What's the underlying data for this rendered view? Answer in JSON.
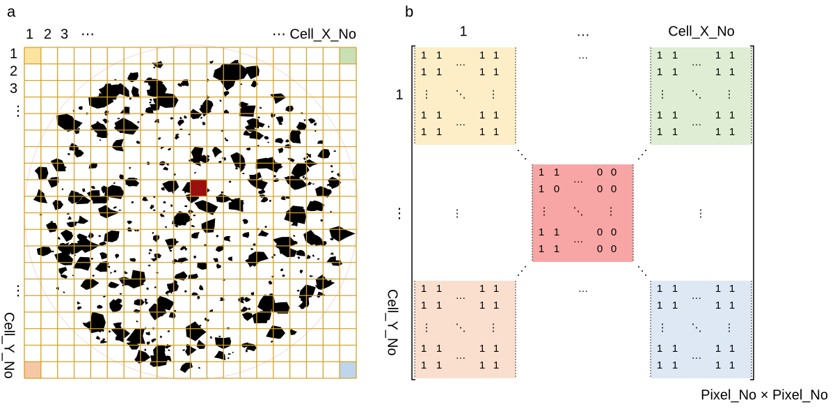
{
  "panel_a": {
    "label": "a",
    "top_labels": [
      "1",
      "2",
      "3",
      "⋯"
    ],
    "top_right_label": "⋯ Cell_X_No",
    "left_labels": [
      "1",
      "2",
      "3",
      "⋮"
    ],
    "left_lower_label": "⋮",
    "left_axis_label": "Cell_Y_No"
  },
  "panel_b": {
    "label": "b",
    "col_headers": [
      "1",
      "…",
      "Cell_X_No"
    ],
    "row_labels": [
      "1",
      "⋮",
      "Cell_Y_No"
    ],
    "footer": "Pixel_No × Pixel_No",
    "gap_texts": [
      "…",
      "⋮",
      "⋮",
      "…"
    ],
    "blocks": [
      {
        "rows": [
          [
            "1",
            "1",
            "…",
            "1",
            "1"
          ],
          [
            "1",
            "1",
            "1",
            "1"
          ],
          [
            "⋮",
            "⋱",
            "⋮"
          ],
          [
            "1",
            "1",
            "…",
            "1",
            "1"
          ],
          [
            "1",
            "1",
            "1",
            "1"
          ]
        ]
      },
      {
        "rows": [
          [
            "1",
            "1",
            "…",
            "1",
            "1"
          ],
          [
            "1",
            "1",
            "1",
            "1"
          ],
          [
            "⋮",
            "⋱",
            "⋮"
          ],
          [
            "1",
            "1",
            "…",
            "1",
            "1"
          ],
          [
            "1",
            "1",
            "1",
            "1"
          ]
        ]
      },
      {
        "rows": [
          [
            "1",
            "1",
            "…",
            "0",
            "0"
          ],
          [
            "1",
            "0",
            "0",
            "0"
          ],
          [
            "⋮",
            "⋱",
            "⋮"
          ],
          [
            "1",
            "1",
            "…",
            "0",
            "0"
          ],
          [
            "1",
            "1",
            "0",
            "0"
          ]
        ]
      },
      {
        "rows": [
          [
            "1",
            "1",
            "…",
            "1",
            "1"
          ],
          [
            "1",
            "1",
            "1",
            "1"
          ],
          [
            "⋮",
            "⋱",
            "⋮"
          ],
          [
            "1",
            "1",
            "…",
            "1",
            "1"
          ],
          [
            "1",
            "1",
            "1",
            "1"
          ]
        ]
      },
      {
        "rows": [
          [
            "1",
            "1",
            "…",
            "1",
            "1"
          ],
          [
            "1",
            "1",
            "1",
            "1"
          ],
          [
            "⋮",
            "⋱",
            "⋮"
          ],
          [
            "1",
            "1",
            "…",
            "1",
            "1"
          ],
          [
            "1",
            "1",
            "1",
            "1"
          ]
        ]
      }
    ]
  }
}
